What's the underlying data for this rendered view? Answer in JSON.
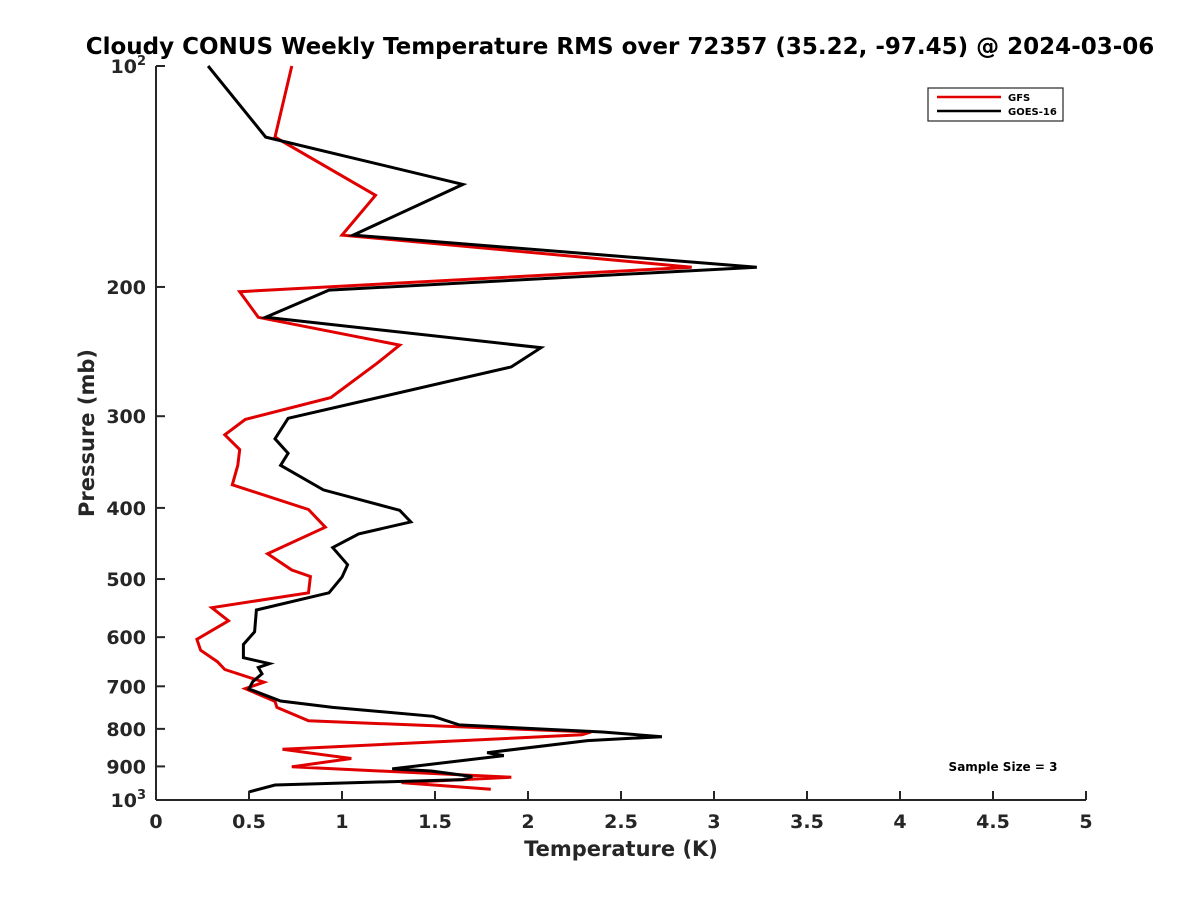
{
  "chart_data": {
    "type": "line",
    "title": "Cloudy CONUS Weekly Temperature RMS over 72357 (35.22, -97.45) @ 2024-03-06",
    "xlabel": "Temperature (K)",
    "ylabel": "Pressure (mb)",
    "xlim": [
      0,
      5
    ],
    "ylim": [
      100,
      1000
    ],
    "y_scale": "log",
    "y_reversed": true,
    "x_ticks": [
      "0",
      "0.5",
      "1",
      "1.5",
      "2",
      "2.5",
      "3",
      "3.5",
      "4",
      "4.5",
      "5"
    ],
    "x_tick_values": [
      0,
      0.5,
      1,
      1.5,
      2,
      2.5,
      3,
      3.5,
      4,
      4.5,
      5
    ],
    "y_ticks": [
      {
        "value": 100,
        "base": "10",
        "exp": "2"
      },
      {
        "value": 200,
        "label": "200"
      },
      {
        "value": 300,
        "label": "300"
      },
      {
        "value": 400,
        "label": "400"
      },
      {
        "value": 500,
        "label": "500"
      },
      {
        "value": 600,
        "label": "600"
      },
      {
        "value": 700,
        "label": "700"
      },
      {
        "value": 800,
        "label": "800"
      },
      {
        "value": 900,
        "label": "900"
      },
      {
        "value": 1000,
        "base": "10",
        "exp": "3"
      }
    ],
    "grid": false,
    "legend_position": "top-right",
    "annotation": "Sample Size = 3",
    "series": [
      {
        "name": "GFS",
        "color": "#e00000",
        "points": [
          [
            0.73,
            100
          ],
          [
            0.64,
            125
          ],
          [
            1.18,
            150
          ],
          [
            1.0,
            170
          ],
          [
            2.88,
            188
          ],
          [
            0.45,
            203
          ],
          [
            0.55,
            220
          ],
          [
            1.31,
            240
          ],
          [
            1.19,
            254
          ],
          [
            0.94,
            283
          ],
          [
            0.48,
            303
          ],
          [
            0.37,
            318
          ],
          [
            0.45,
            333
          ],
          [
            0.44,
            350
          ],
          [
            0.41,
            372
          ],
          [
            0.82,
            402
          ],
          [
            0.91,
            425
          ],
          [
            0.6,
            462
          ],
          [
            0.73,
            486
          ],
          [
            0.83,
            496
          ],
          [
            0.82,
            522
          ],
          [
            0.3,
            547
          ],
          [
            0.39,
            570
          ],
          [
            0.22,
            604
          ],
          [
            0.24,
            625
          ],
          [
            0.33,
            648
          ],
          [
            0.37,
            664
          ],
          [
            0.58,
            691
          ],
          [
            0.48,
            705
          ],
          [
            0.64,
            734
          ],
          [
            0.65,
            748
          ],
          [
            0.82,
            780
          ],
          [
            2.34,
            808
          ],
          [
            2.29,
            815
          ],
          [
            0.68,
            853
          ],
          [
            1.05,
            878
          ],
          [
            0.73,
            901
          ],
          [
            1.91,
            931
          ],
          [
            1.32,
            947
          ],
          [
            1.8,
            967
          ]
        ]
      },
      {
        "name": "GOES-16",
        "color": "#000000",
        "points": [
          [
            0.28,
            100
          ],
          [
            0.59,
            125
          ],
          [
            1.65,
            145
          ],
          [
            1.06,
            170
          ],
          [
            3.23,
            188
          ],
          [
            0.93,
            202
          ],
          [
            0.59,
            220
          ],
          [
            2.07,
            242
          ],
          [
            1.91,
            257
          ],
          [
            0.71,
            302
          ],
          [
            0.64,
            322
          ],
          [
            0.71,
            337
          ],
          [
            0.67,
            350
          ],
          [
            0.9,
            378
          ],
          [
            1.31,
            403
          ],
          [
            1.37,
            418
          ],
          [
            1.09,
            434
          ],
          [
            0.95,
            453
          ],
          [
            1.03,
            478
          ],
          [
            1.0,
            497
          ],
          [
            0.93,
            522
          ],
          [
            0.54,
            551
          ],
          [
            0.53,
            590
          ],
          [
            0.47,
            614
          ],
          [
            0.47,
            640
          ],
          [
            0.61,
            652
          ],
          [
            0.55,
            660
          ],
          [
            0.57,
            673
          ],
          [
            0.52,
            690
          ],
          [
            0.5,
            706
          ],
          [
            0.67,
            733
          ],
          [
            0.95,
            748
          ],
          [
            1.49,
            769
          ],
          [
            1.63,
            790
          ],
          [
            2.4,
            808
          ],
          [
            2.72,
            820
          ],
          [
            2.32,
            830
          ],
          [
            1.78,
            862
          ],
          [
            1.87,
            870
          ],
          [
            1.27,
            907
          ],
          [
            1.48,
            913
          ],
          [
            1.7,
            929
          ],
          [
            1.65,
            938
          ],
          [
            0.64,
            954
          ],
          [
            0.5,
            975
          ]
        ]
      }
    ]
  }
}
